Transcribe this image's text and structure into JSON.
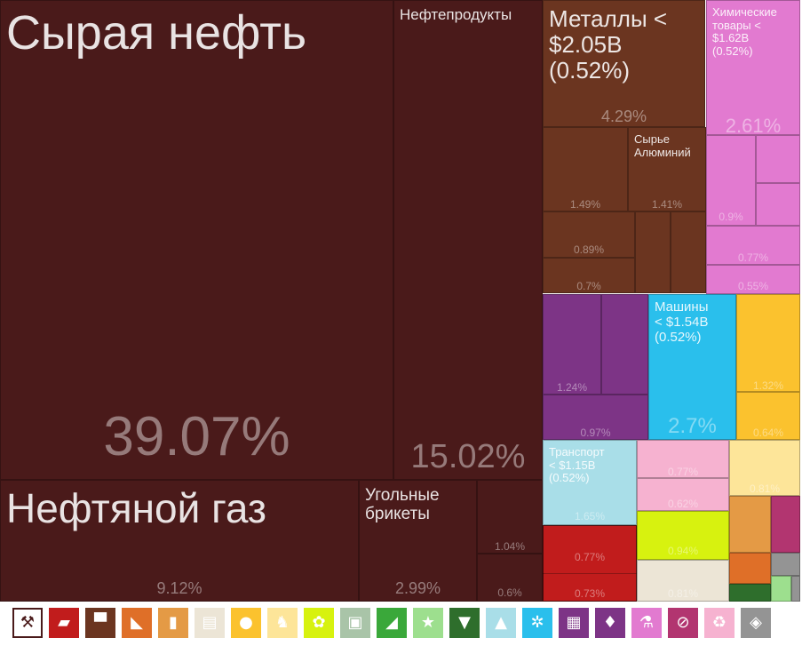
{
  "chart_data": {
    "type": "treemap",
    "tiles": [
      {
        "name": "Сырая нефть",
        "pct": "39.07%",
        "value": 39.07,
        "color": "#4a1a1a"
      },
      {
        "name": "Нефтепродукты",
        "pct": "15.02%",
        "value": 15.02,
        "color": "#4a1a1a"
      },
      {
        "name": "Нефтяной газ",
        "pct": "9.12%",
        "value": 9.12,
        "color": "#4a1a1a"
      },
      {
        "name": "Угольные\nбрикеты",
        "pct": "2.99%",
        "value": 2.99,
        "color": "#4a1a1a"
      },
      {
        "name": "",
        "pct": "1.04%",
        "value": 1.04,
        "color": "#4a1a1a"
      },
      {
        "name": "",
        "pct": "0.6%",
        "value": 0.6,
        "color": "#4a1a1a"
      },
      {
        "name": "Металлы <\n$2.05B\n(0.52%)",
        "pct": "4.29%",
        "value": 4.29,
        "color": "#6b3520"
      },
      {
        "name": "",
        "pct": "1.49%",
        "value": 1.49,
        "color": "#6b3520"
      },
      {
        "name": "Сырье\nАлюминий",
        "pct": "1.41%",
        "value": 1.41,
        "color": "#6b3520"
      },
      {
        "name": "",
        "pct": "0.89%",
        "value": 0.89,
        "color": "#6b3520"
      },
      {
        "name": "",
        "pct": "",
        "value": null,
        "color": "#6b3520"
      },
      {
        "name": "",
        "pct": "",
        "value": null,
        "color": "#6b3520"
      },
      {
        "name": "",
        "pct": "0.7%",
        "value": 0.7,
        "color": "#6b3520"
      },
      {
        "name": "Химические\nтовары <\n$1.62B\n(0.52%)",
        "pct": "2.61%",
        "value": 2.61,
        "color": "#e27ad0"
      },
      {
        "name": "",
        "pct": "0.9%",
        "value": 0.9,
        "color": "#e27ad0"
      },
      {
        "name": "",
        "pct": "",
        "value": null,
        "color": "#e27ad0"
      },
      {
        "name": "",
        "pct": "",
        "value": null,
        "color": "#e27ad0"
      },
      {
        "name": "",
        "pct": "0.77%",
        "value": 0.77,
        "color": "#e27ad0"
      },
      {
        "name": "",
        "pct": "0.55%",
        "value": 0.55,
        "color": "#e27ad0"
      },
      {
        "name": "",
        "pct": "1.24%",
        "value": 1.24,
        "color": "#7d3486"
      },
      {
        "name": "",
        "pct": "",
        "value": null,
        "color": "#7d3486"
      },
      {
        "name": "",
        "pct": "0.97%",
        "value": 0.97,
        "color": "#7d3486"
      },
      {
        "name": "Машины\n< $1.54B\n(0.52%)",
        "pct": "2.7%",
        "value": 2.7,
        "color": "#2abfec"
      },
      {
        "name": "",
        "pct": "1.32%",
        "value": 1.32,
        "color": "#fbc22e"
      },
      {
        "name": "",
        "pct": "0.64%",
        "value": 0.64,
        "color": "#fbc22e"
      },
      {
        "name": "Транспорт\n< $1.15B\n(0.52%)",
        "pct": "1.65%",
        "value": 1.65,
        "color": "#a9dee8"
      },
      {
        "name": "",
        "pct": "0.77%",
        "value": 0.77,
        "color": "#c11c1c"
      },
      {
        "name": "",
        "pct": "0.73%",
        "value": 0.73,
        "color": "#c11c1c"
      },
      {
        "name": "",
        "pct": "0.77%",
        "value": 0.77,
        "color": "#f6b2d0"
      },
      {
        "name": "",
        "pct": "0.62%",
        "value": 0.62,
        "color": "#f6b2d0"
      },
      {
        "name": "",
        "pct": "0.94%",
        "value": 0.94,
        "color": "#d7f20f"
      },
      {
        "name": "",
        "pct": "0.81%",
        "value": 0.81,
        "color": "#ece5d6"
      },
      {
        "name": "",
        "pct": "0.81%",
        "value": 0.81,
        "color": "#fde599"
      },
      {
        "name": "",
        "pct": "",
        "value": null,
        "color": "#e49a45"
      },
      {
        "name": "",
        "pct": "",
        "value": null,
        "color": "#b23570"
      },
      {
        "name": "",
        "pct": "",
        "value": null,
        "color": "#df6f28"
      },
      {
        "name": "",
        "pct": "",
        "value": null,
        "color": "#949494"
      },
      {
        "name": "",
        "pct": "",
        "value": null,
        "color": "#2e6e2c"
      },
      {
        "name": "",
        "pct": "",
        "value": null,
        "color": "#9ddf8e"
      },
      {
        "name": "",
        "pct": "",
        "value": null,
        "color": "#949494"
      }
    ]
  },
  "legend": [
    {
      "icon": "pickaxe-icon",
      "glyph": "⚒",
      "color": "#4a1a1a"
    },
    {
      "icon": "ingot-icon",
      "glyph": "▰",
      "color": "#c11c1c"
    },
    {
      "icon": "anvil-icon",
      "glyph": "▀",
      "color": "#6b3520"
    },
    {
      "icon": "stone-icon",
      "glyph": "◣",
      "color": "#df6f28"
    },
    {
      "icon": "bottle-icon",
      "glyph": "▮",
      "color": "#e49a45"
    },
    {
      "icon": "scroll-icon",
      "glyph": "▤",
      "color": "#ece5d6"
    },
    {
      "icon": "vegetable-icon",
      "glyph": "●",
      "color": "#fbc22e"
    },
    {
      "icon": "animal-icon",
      "glyph": "♞",
      "color": "#fde599"
    },
    {
      "icon": "grain-icon",
      "glyph": "✿",
      "color": "#d7f20f"
    },
    {
      "icon": "suitcase-icon",
      "glyph": "▣",
      "color": "#a9c4a8"
    },
    {
      "icon": "shoe-icon",
      "glyph": "◢",
      "color": "#3aa83a"
    },
    {
      "icon": "star-icon",
      "glyph": "★",
      "color": "#9ddf8e"
    },
    {
      "icon": "shirt-icon",
      "glyph": "▼",
      "color": "#2e6e2c"
    },
    {
      "icon": "road-icon",
      "glyph": "▲",
      "color": "#a9dee8"
    },
    {
      "icon": "gears-icon",
      "glyph": "✲",
      "color": "#2abfec"
    },
    {
      "icon": "picture-icon",
      "glyph": "▦",
      "color": "#7d3486"
    },
    {
      "icon": "diamond-icon",
      "glyph": "♦",
      "color": "#7d3486"
    },
    {
      "icon": "flask-icon",
      "glyph": "⚗",
      "color": "#e27ad0"
    },
    {
      "icon": "no-sign-icon",
      "glyph": "⊘",
      "color": "#b23570"
    },
    {
      "icon": "recycle-icon",
      "glyph": "♻",
      "color": "#f6b2d0"
    },
    {
      "icon": "box-icon",
      "glyph": "◈",
      "color": "#949494"
    }
  ]
}
